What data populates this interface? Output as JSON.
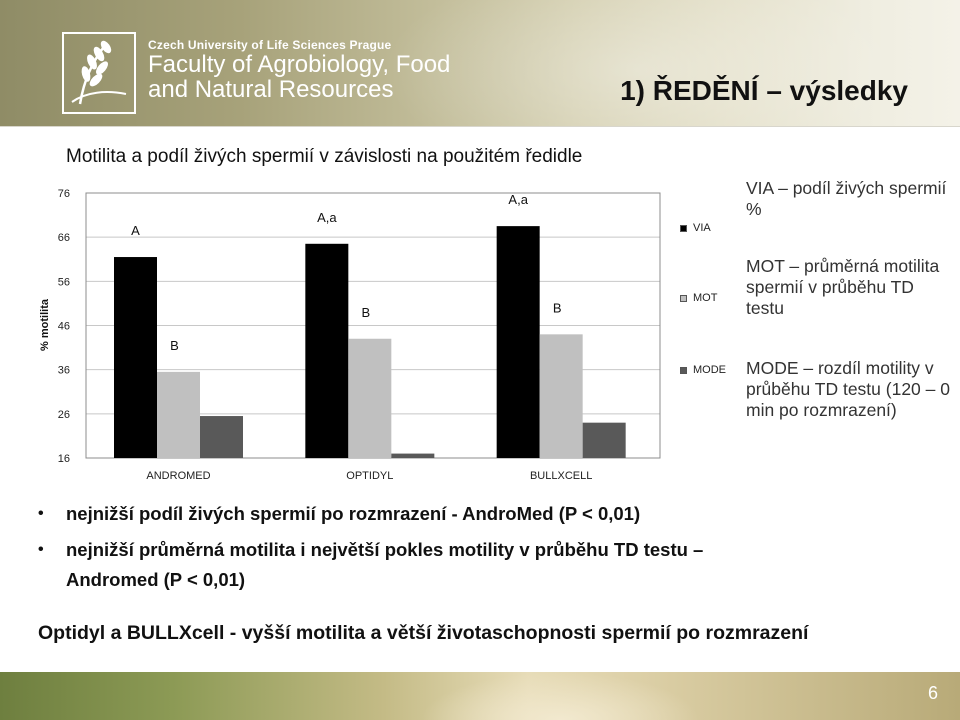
{
  "header": {
    "university": "Czech University of Life Sciences Prague",
    "faculty_line1": "Faculty of Agrobiology, Food",
    "faculty_line2": "and Natural Resources",
    "logo_icon": "wheat-logo-icon"
  },
  "slide_title": "1) ŘEDĚNÍ – výsledky",
  "chart_title": "Motilita a podíl živých spermií v závislosti na použitém ředidle",
  "chart_data": {
    "type": "bar",
    "title": "Motilita a podíl živých spermií v závislosti na použitém ředidle",
    "ylabel": "% motilita",
    "xlabel": "",
    "ylim": [
      16,
      76
    ],
    "yticks": [
      "76",
      "66",
      "56",
      "46",
      "36",
      "26",
      "16"
    ],
    "categories": [
      "ANDROMED",
      "OPTIDYL",
      "BULLXCELL"
    ],
    "grid": true,
    "legend_position": "right",
    "series": [
      {
        "name": "VIA",
        "color": "#000000",
        "values": [
          61.5,
          64.5,
          68.5
        ],
        "labels": [
          "A",
          "A,a",
          "A,a"
        ]
      },
      {
        "name": "MOT",
        "color": "#c0c0c0",
        "values": [
          35.5,
          43,
          44
        ],
        "labels": [
          "B",
          "B",
          "B"
        ]
      },
      {
        "name": "MODE",
        "color": "#595959",
        "values": [
          25.5,
          17,
          24
        ],
        "labels": [
          "",
          "",
          ""
        ]
      }
    ]
  },
  "notes": [
    "VIA – podíl živých spermií %",
    "MOT – průměrná motilita spermií v průběhu TD testu",
    "MODE – rozdíl motility v průběhu TD testu (120 – 0 min po rozmrazení)"
  ],
  "bullets": [
    {
      "dot": "•",
      "text": "nejnižší podíl živých spermií po rozmrazení - AndroMed (P < 0,01)"
    },
    {
      "dot": "•",
      "line1": "nejnižší průměrná motilita i největší pokles motility v průběhu TD testu –",
      "line2": "Andromed (P < 0,01)"
    }
  ],
  "conclusion": "Optidyl a BULLXcell - vyšší motilita a větší životaschopnosti spermií po rozmrazení",
  "page_number": "6"
}
